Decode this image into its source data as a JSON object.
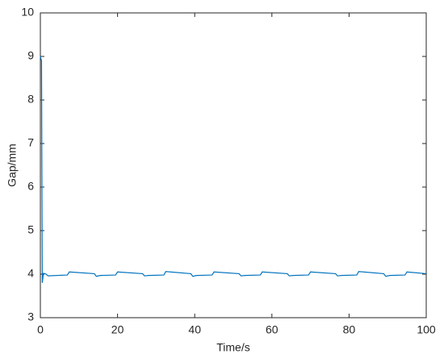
{
  "chart_data": {
    "type": "line",
    "x_label": "Time/s",
    "y_label": "Gap/mm",
    "x": [
      0,
      0.3,
      0.5,
      0.8,
      1.5,
      2,
      7,
      7.5,
      14,
      14.5,
      15.5,
      19.5,
      20,
      26.5,
      27,
      28,
      32,
      32.5,
      39,
      39.5,
      40.5,
      44.5,
      45,
      51.5,
      52,
      53,
      57,
      57.5,
      64,
      64.5,
      65.5,
      69.5,
      70,
      76.5,
      77,
      78,
      82,
      82.5,
      89,
      89.5,
      90.5,
      94.5,
      95,
      100
    ],
    "series": [
      {
        "color": "#0072bd",
        "values": [
          9.0,
          8.9,
          3.8,
          4.02,
          4.0,
          3.96,
          3.98,
          4.05,
          4.01,
          3.95,
          3.97,
          3.98,
          4.05,
          4.01,
          3.96,
          3.97,
          3.98,
          4.06,
          4.01,
          3.95,
          3.97,
          3.98,
          4.05,
          4.01,
          3.96,
          3.97,
          3.98,
          4.05,
          4.01,
          3.96,
          3.97,
          3.98,
          4.05,
          4.01,
          3.96,
          3.97,
          3.98,
          4.06,
          4.01,
          3.95,
          3.97,
          3.98,
          4.05,
          4.01
        ]
      }
    ],
    "xlim": [
      0,
      100
    ],
    "xticks": [
      0,
      20,
      40,
      60,
      80,
      100
    ],
    "ylim": [
      3,
      10
    ],
    "yticks": [
      3,
      4,
      5,
      6,
      7,
      8,
      9,
      10
    ],
    "grid": false
  }
}
